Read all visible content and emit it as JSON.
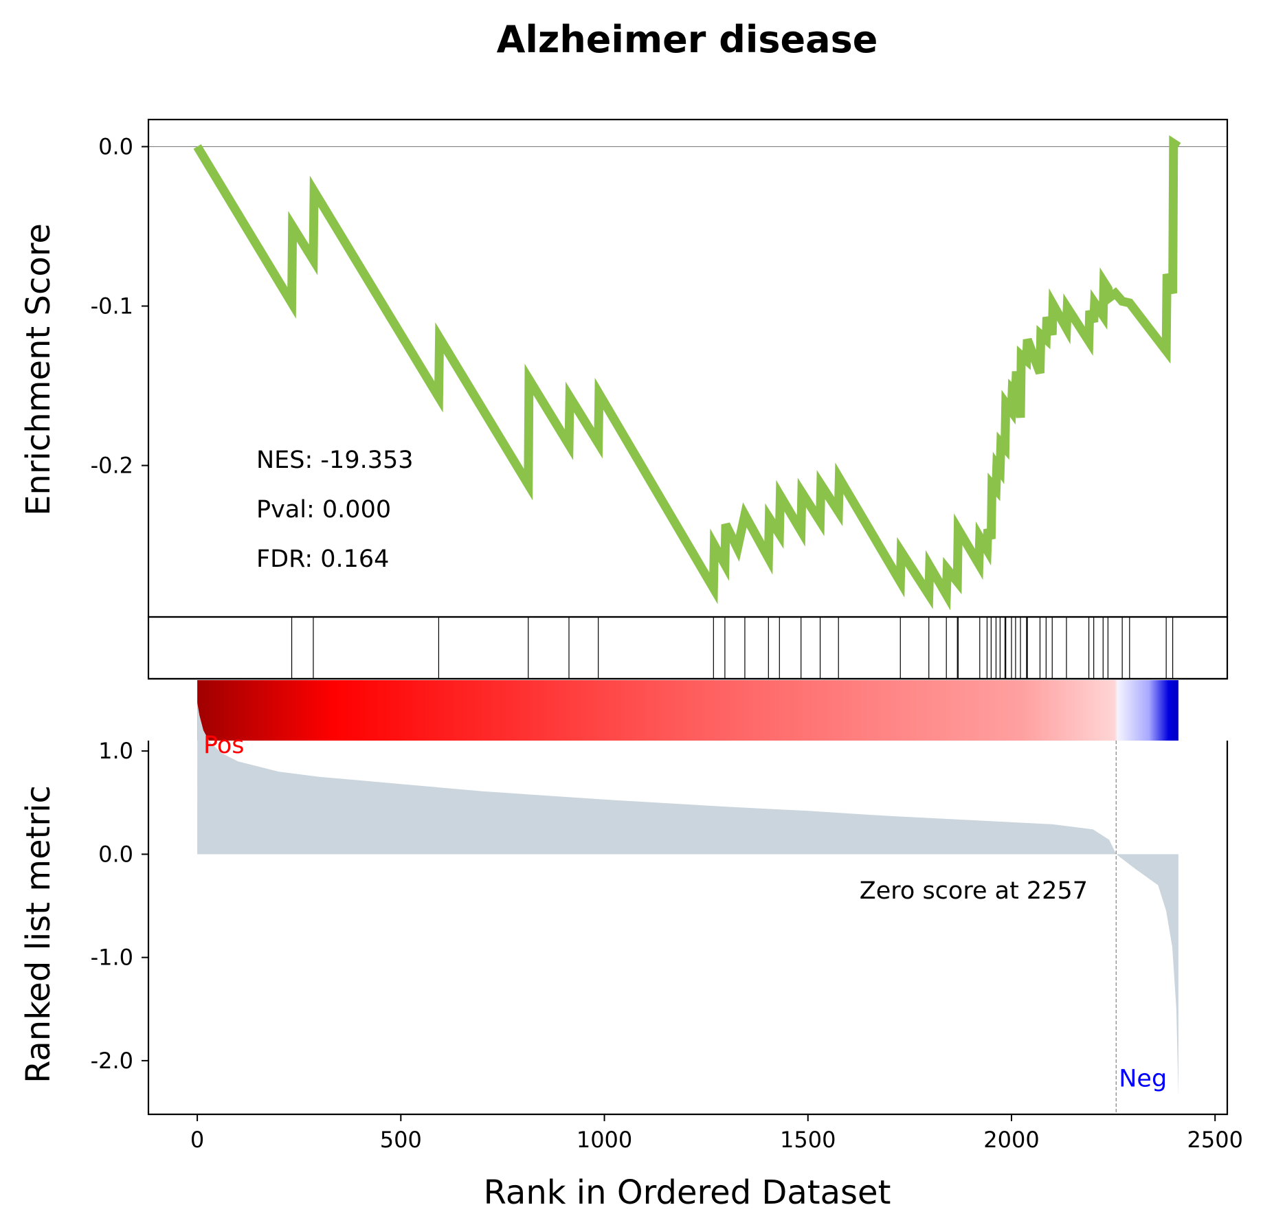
{
  "chart_data": {
    "type": "line",
    "title": "Alzheimer disease",
    "colors": {
      "es_line": "#8bc34a",
      "metric_fill": "#cad5dd",
      "axis": "#000000",
      "zero_line": "#808080",
      "pos_label": "#ff0000",
      "neg_label": "#0000ff"
    },
    "xlabel": "Rank in Ordered Dataset",
    "xlim": [
      -120,
      2530
    ],
    "xticks": [
      "0",
      "500",
      "1000",
      "1500",
      "2000",
      "2500"
    ],
    "xtick_values": [
      0,
      500,
      1000,
      1500,
      2000,
      2500
    ],
    "enrichment": {
      "ylabel": "Enrichment Score",
      "ylim": [
        -0.295,
        0.017
      ],
      "yticks": [
        "0.0",
        "-0.1",
        "-0.2"
      ],
      "ytick_values": [
        0.0,
        -0.1,
        -0.2
      ],
      "points": [
        [
          0,
          0.0
        ],
        [
          232,
          -0.098
        ],
        [
          234,
          -0.05
        ],
        [
          285,
          -0.071
        ],
        [
          287,
          -0.028
        ],
        [
          593,
          -0.157
        ],
        [
          595,
          -0.12
        ],
        [
          813,
          -0.212
        ],
        [
          815,
          -0.146
        ],
        [
          913,
          -0.187
        ],
        [
          915,
          -0.157
        ],
        [
          985,
          -0.186
        ],
        [
          987,
          -0.155
        ],
        [
          1268,
          -0.277
        ],
        [
          1270,
          -0.25
        ],
        [
          1296,
          -0.262
        ],
        [
          1298,
          -0.237
        ],
        [
          1327,
          -0.252
        ],
        [
          1345,
          -0.231
        ],
        [
          1403,
          -0.258
        ],
        [
          1405,
          -0.233
        ],
        [
          1430,
          -0.243
        ],
        [
          1432,
          -0.219
        ],
        [
          1483,
          -0.241
        ],
        [
          1485,
          -0.217
        ],
        [
          1530,
          -0.235
        ],
        [
          1532,
          -0.212
        ],
        [
          1575,
          -0.229
        ],
        [
          1577,
          -0.208
        ],
        [
          1727,
          -0.273
        ],
        [
          1729,
          -0.254
        ],
        [
          1797,
          -0.281
        ],
        [
          1799,
          -0.263
        ],
        [
          1840,
          -0.281
        ],
        [
          1842,
          -0.265
        ],
        [
          1867,
          -0.273
        ],
        [
          1869,
          -0.24
        ],
        [
          1920,
          -0.262
        ],
        [
          1922,
          -0.245
        ],
        [
          1940,
          -0.253
        ],
        [
          1942,
          -0.24
        ],
        [
          1950,
          -0.246
        ],
        [
          1952,
          -0.212
        ],
        [
          1962,
          -0.215
        ],
        [
          1964,
          -0.2
        ],
        [
          1972,
          -0.203
        ],
        [
          1974,
          -0.186
        ],
        [
          1984,
          -0.189
        ],
        [
          1986,
          -0.161
        ],
        [
          2000,
          -0.166
        ],
        [
          2002,
          -0.152
        ],
        [
          2010,
          -0.154
        ],
        [
          2012,
          -0.141
        ],
        [
          2022,
          -0.17
        ],
        [
          2024,
          -0.131
        ],
        [
          2037,
          -0.134
        ],
        [
          2039,
          -0.121
        ],
        [
          2070,
          -0.142
        ],
        [
          2072,
          -0.118
        ],
        [
          2085,
          -0.121
        ],
        [
          2087,
          -0.107
        ],
        [
          2100,
          -0.118
        ],
        [
          2102,
          -0.099
        ],
        [
          2135,
          -0.114
        ],
        [
          2137,
          -0.101
        ],
        [
          2190,
          -0.122
        ],
        [
          2192,
          -0.103
        ],
        [
          2202,
          -0.11
        ],
        [
          2204,
          -0.098
        ],
        [
          2225,
          -0.106
        ],
        [
          2227,
          -0.085
        ],
        [
          2237,
          -0.089
        ],
        [
          2239,
          -0.095
        ],
        [
          2255,
          -0.092
        ],
        [
          2272,
          -0.097
        ],
        [
          2290,
          -0.098
        ],
        [
          2380,
          -0.128
        ],
        [
          2382,
          -0.08
        ],
        [
          2396,
          -0.092
        ],
        [
          2398,
          0.002
        ],
        [
          2410,
          0.0
        ]
      ]
    },
    "hits": [
      232,
      285,
      593,
      813,
      913,
      985,
      1268,
      1296,
      1345,
      1403,
      1430,
      1483,
      1530,
      1575,
      1727,
      1797,
      1840,
      1867,
      1869,
      1922,
      1940,
      1950,
      1962,
      1972,
      1984,
      1986,
      2000,
      2010,
      2022,
      2037,
      2039,
      2070,
      2085,
      2100,
      2135,
      2190,
      2202,
      2225,
      2237,
      2272,
      2290,
      2380,
      2396
    ],
    "heatmap": {
      "x_range": [
        0,
        2410
      ],
      "stops": [
        [
          0.0,
          "#a00000"
        ],
        [
          0.14,
          "#ff0000"
        ],
        [
          0.5,
          "#ff5c5c"
        ],
        [
          0.84,
          "#ffa0a0"
        ],
        [
          0.935,
          "#ffd5d5"
        ],
        [
          0.938,
          "#f4f4ff"
        ],
        [
          0.97,
          "#a8a8ff"
        ],
        [
          0.99,
          "#0000e0"
        ],
        [
          1.0,
          "#0000c0"
        ]
      ]
    },
    "ranked_metric": {
      "ylabel": "Ranked list metric",
      "ylim": [
        -2.52,
        1.7
      ],
      "yticks": [
        "1.0",
        "0.0",
        "-1.0",
        "-2.0"
      ],
      "ytick_values": [
        1.0,
        0.0,
        -1.0,
        -2.0
      ],
      "curve": [
        [
          0,
          1.47
        ],
        [
          5,
          1.35
        ],
        [
          15,
          1.2
        ],
        [
          30,
          1.09
        ],
        [
          60,
          0.98
        ],
        [
          100,
          0.9
        ],
        [
          200,
          0.8
        ],
        [
          300,
          0.75
        ],
        [
          500,
          0.68
        ],
        [
          700,
          0.61
        ],
        [
          1000,
          0.53
        ],
        [
          1300,
          0.46
        ],
        [
          1500,
          0.42
        ],
        [
          1700,
          0.37
        ],
        [
          1900,
          0.33
        ],
        [
          2100,
          0.29
        ],
        [
          2200,
          0.24
        ],
        [
          2240,
          0.14
        ],
        [
          2257,
          0.0
        ],
        [
          2300,
          -0.13
        ],
        [
          2360,
          -0.3
        ],
        [
          2380,
          -0.55
        ],
        [
          2395,
          -0.9
        ],
        [
          2405,
          -1.5
        ],
        [
          2410,
          -2.35
        ]
      ],
      "zero_score_rank": 2257,
      "zero_score_label": "Zero score at 2257",
      "pos_label": "Pos",
      "neg_label": "Neg"
    },
    "stats": {
      "nes": "NES: -19.353",
      "pval": "Pval: 0.000",
      "fdr": "FDR: 0.164"
    }
  }
}
